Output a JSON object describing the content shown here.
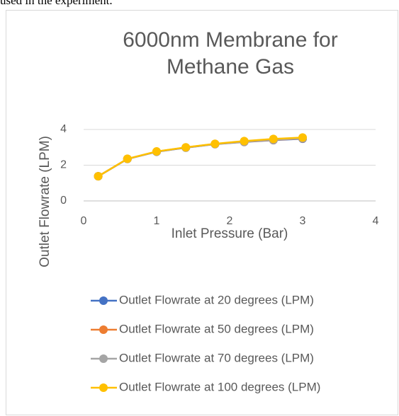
{
  "caption": "used in the experiment.",
  "chart_data": {
    "type": "line",
    "title": "6000nm Membrane for Methane Gas",
    "x_label": "Inlet Pressure (Bar)",
    "y_label": "Outlet Flowrate (LPM)",
    "x": [
      0.2,
      0.6,
      1.0,
      1.4,
      1.8,
      2.2,
      2.6,
      3.0
    ],
    "series": [
      {
        "name": "Outlet Flowrate at 20 degrees (LPM)",
        "color": "#4472c4",
        "values": [
          1.38,
          2.35,
          2.75,
          2.98,
          3.18,
          3.3,
          3.4,
          3.48
        ]
      },
      {
        "name": "Outlet Flowrate at 50 degrees (LPM)",
        "color": "#ed7d31",
        "values": [
          1.38,
          2.35,
          2.76,
          2.99,
          3.19,
          3.31,
          3.41,
          3.5
        ]
      },
      {
        "name": "Outlet Flowrate at 70 degrees (LPM)",
        "color": "#a5a5a5",
        "values": [
          1.38,
          2.35,
          2.76,
          2.99,
          3.19,
          3.32,
          3.42,
          3.51
        ]
      },
      {
        "name": "Outlet Flowrate at 100 degrees (LPM)",
        "color": "#ffc000",
        "values": [
          1.38,
          2.36,
          2.77,
          3.0,
          3.2,
          3.35,
          3.47,
          3.55
        ]
      }
    ],
    "xlim": [
      0,
      4
    ],
    "xticks": [
      0,
      1,
      2,
      3,
      4
    ],
    "ylim": [
      0,
      4
    ],
    "yticks": [
      0,
      2,
      4
    ],
    "grid": true,
    "legend": "bottom"
  }
}
